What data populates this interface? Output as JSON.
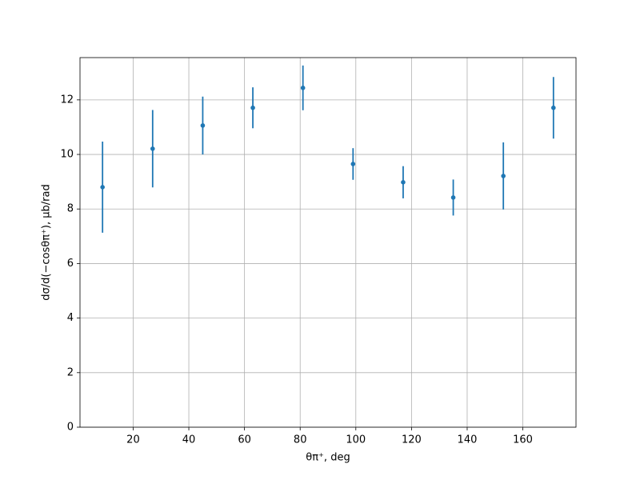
{
  "chart_data": {
    "type": "errorbar",
    "xlabel": "θπ⁺, deg",
    "ylabel": "dσ/d(−cosθπ⁺), μb/rad",
    "x": [
      9,
      27,
      45,
      63,
      81,
      99,
      117,
      135,
      153,
      171
    ],
    "series": [
      {
        "color": "#1f77b4",
        "values": [
          8.8,
          10.21,
          11.06,
          11.71,
          12.44,
          9.65,
          8.98,
          8.42,
          9.21,
          11.71
        ],
        "errors": [
          1.67,
          1.42,
          1.06,
          0.75,
          0.82,
          0.58,
          0.59,
          0.66,
          1.23,
          1.13
        ]
      }
    ],
    "xlim": [
      0.9,
      179.1
    ],
    "ylim": [
      0,
      13.55
    ],
    "xticks": [
      20,
      40,
      60,
      80,
      100,
      120,
      140,
      160
    ],
    "yticks": [
      0,
      2,
      4,
      6,
      8,
      10,
      12
    ],
    "grid": true
  }
}
